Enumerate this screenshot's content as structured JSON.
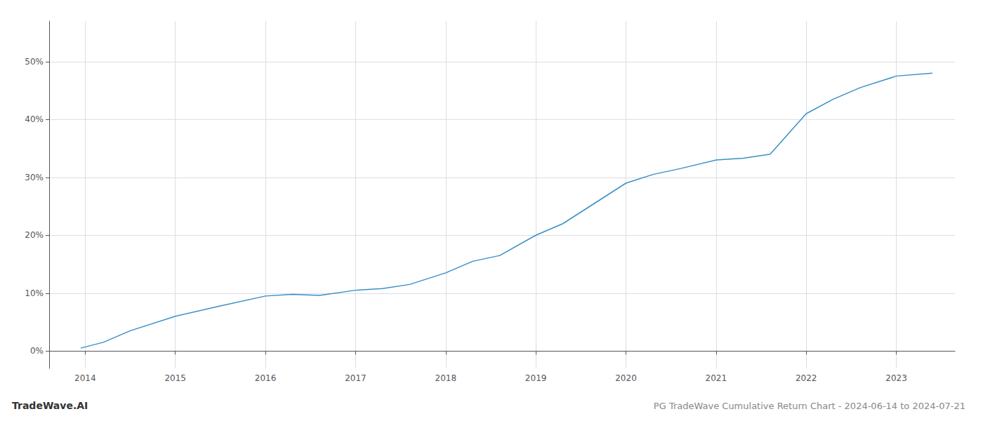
{
  "chart_data": {
    "type": "line",
    "title": "PG TradeWave Cumulative Return Chart - 2024-06-14 to 2024-07-21",
    "annotations": [
      "TradeWave.AI"
    ],
    "x": [
      2013.95,
      2014.2,
      2014.5,
      2015.0,
      2015.5,
      2016.0,
      2016.3,
      2016.6,
      2017.0,
      2017.3,
      2017.6,
      2018.0,
      2018.3,
      2018.6,
      2019.0,
      2019.3,
      2019.6,
      2020.0,
      2020.3,
      2020.6,
      2021.0,
      2021.3,
      2021.6,
      2022.0,
      2022.3,
      2022.6,
      2023.0,
      2023.4
    ],
    "values": [
      0.5,
      1.5,
      3.5,
      6.0,
      7.8,
      9.5,
      9.8,
      9.6,
      10.5,
      10.8,
      11.5,
      13.5,
      15.5,
      16.5,
      20.0,
      22.0,
      25.0,
      29.0,
      30.5,
      31.5,
      33.0,
      33.3,
      34.0,
      41.0,
      43.5,
      45.5,
      47.5,
      48.0
    ],
    "color": "#3a8fc7",
    "xlim": [
      2013.6,
      2023.65
    ],
    "xticks": [
      2014,
      2015,
      2016,
      2017,
      2018,
      2019,
      2020,
      2021,
      2022,
      2023
    ],
    "ylim": [
      -3,
      57
    ],
    "yticks": [
      {
        "value": 0,
        "label": "0%"
      },
      {
        "value": 10,
        "label": "10%"
      },
      {
        "value": 20,
        "label": "20%"
      },
      {
        "value": 30,
        "label": "30%"
      },
      {
        "value": 40,
        "label": "40%"
      },
      {
        "value": 50,
        "label": "50%"
      }
    ],
    "grid": true
  }
}
